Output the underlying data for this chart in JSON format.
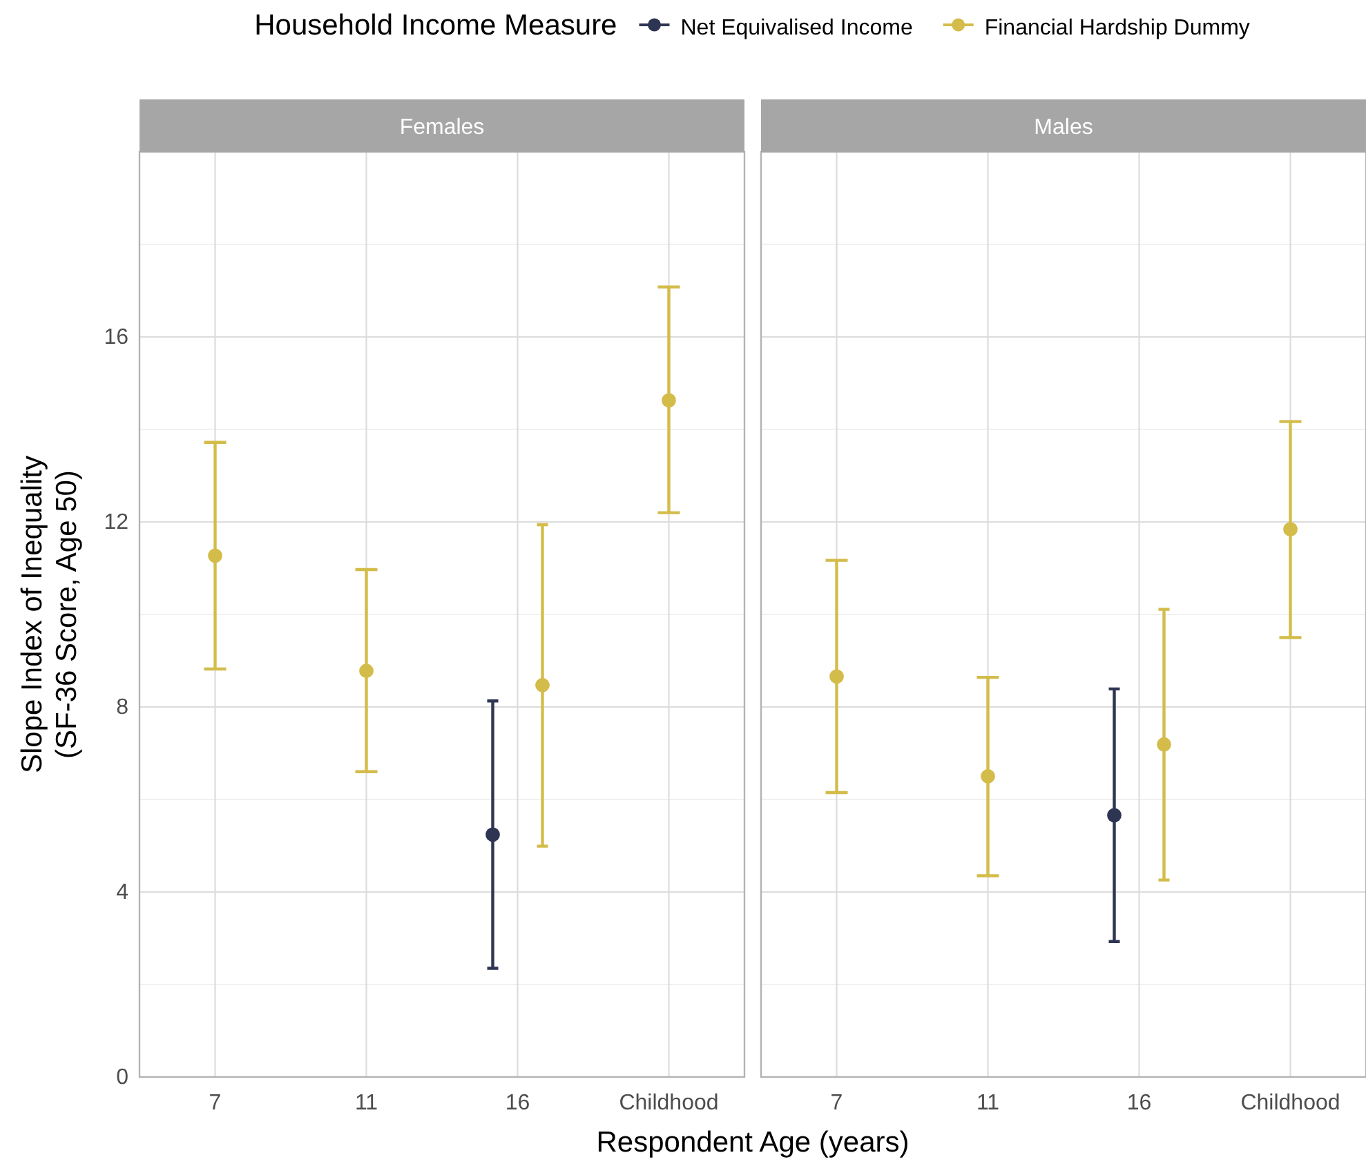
{
  "chart_data": [
    {
      "type": "scatter",
      "title": "Females",
      "categories": [
        "7",
        "11",
        "16",
        "Childhood"
      ],
      "xlabel": "Respondent Age (years)",
      "ylabel": "Slope Index of Inequality\n(SF-36 Score, Age 50)",
      "legend_title": "Household Income Measure",
      "legend": "top",
      "marker": "circle",
      "grid": true,
      "ylim": [
        0,
        20
      ],
      "yticks": [
        0,
        {
          "value": 2,
          "label": null
        },
        4,
        {
          "value": 6,
          "label": null
        },
        8,
        {
          "value": 10,
          "label": null
        },
        12,
        {
          "value": 14,
          "label": null
        },
        16,
        {
          "value": 18,
          "label": null
        }
      ],
      "series": [
        {
          "name": "Net Equivalised Income",
          "color": "#2e3552",
          "values": [
            null,
            null,
            5.24,
            null
          ],
          "errors": [
            null,
            null,
            [
              2.35,
              8.13
            ],
            null
          ]
        },
        {
          "name": "Financial Hardship Dummy",
          "color": "#d4bc4a",
          "values": [
            11.27,
            8.78,
            8.47,
            14.63
          ],
          "errors": [
            [
              8.82,
              13.72
            ],
            [
              6.6,
              10.97
            ],
            [
              4.99,
              11.94
            ],
            [
              12.2,
              17.08
            ]
          ]
        }
      ]
    },
    {
      "type": "scatter",
      "title": "Males",
      "categories": [
        "7",
        "11",
        "16",
        "Childhood"
      ],
      "marker": "circle",
      "grid": true,
      "tick_labels": "x",
      "ylim": [
        0,
        20
      ],
      "yticks": [
        0,
        {
          "value": 2,
          "label": null
        },
        4,
        {
          "value": 6,
          "label": null
        },
        8,
        {
          "value": 10,
          "label": null
        },
        12,
        {
          "value": 14,
          "label": null
        },
        16,
        {
          "value": 18,
          "label": null
        }
      ],
      "series": [
        {
          "color": "#2e3552",
          "values": [
            null,
            null,
            5.66,
            null
          ],
          "errors": [
            null,
            null,
            [
              2.93,
              8.39
            ],
            null
          ]
        },
        {
          "color": "#d4bc4a",
          "values": [
            8.66,
            6.5,
            7.19,
            11.84
          ],
          "errors": [
            [
              6.15,
              11.17
            ],
            [
              4.35,
              8.64
            ],
            [
              4.26,
              10.11
            ],
            [
              9.5,
              14.17
            ]
          ]
        }
      ]
    }
  ]
}
